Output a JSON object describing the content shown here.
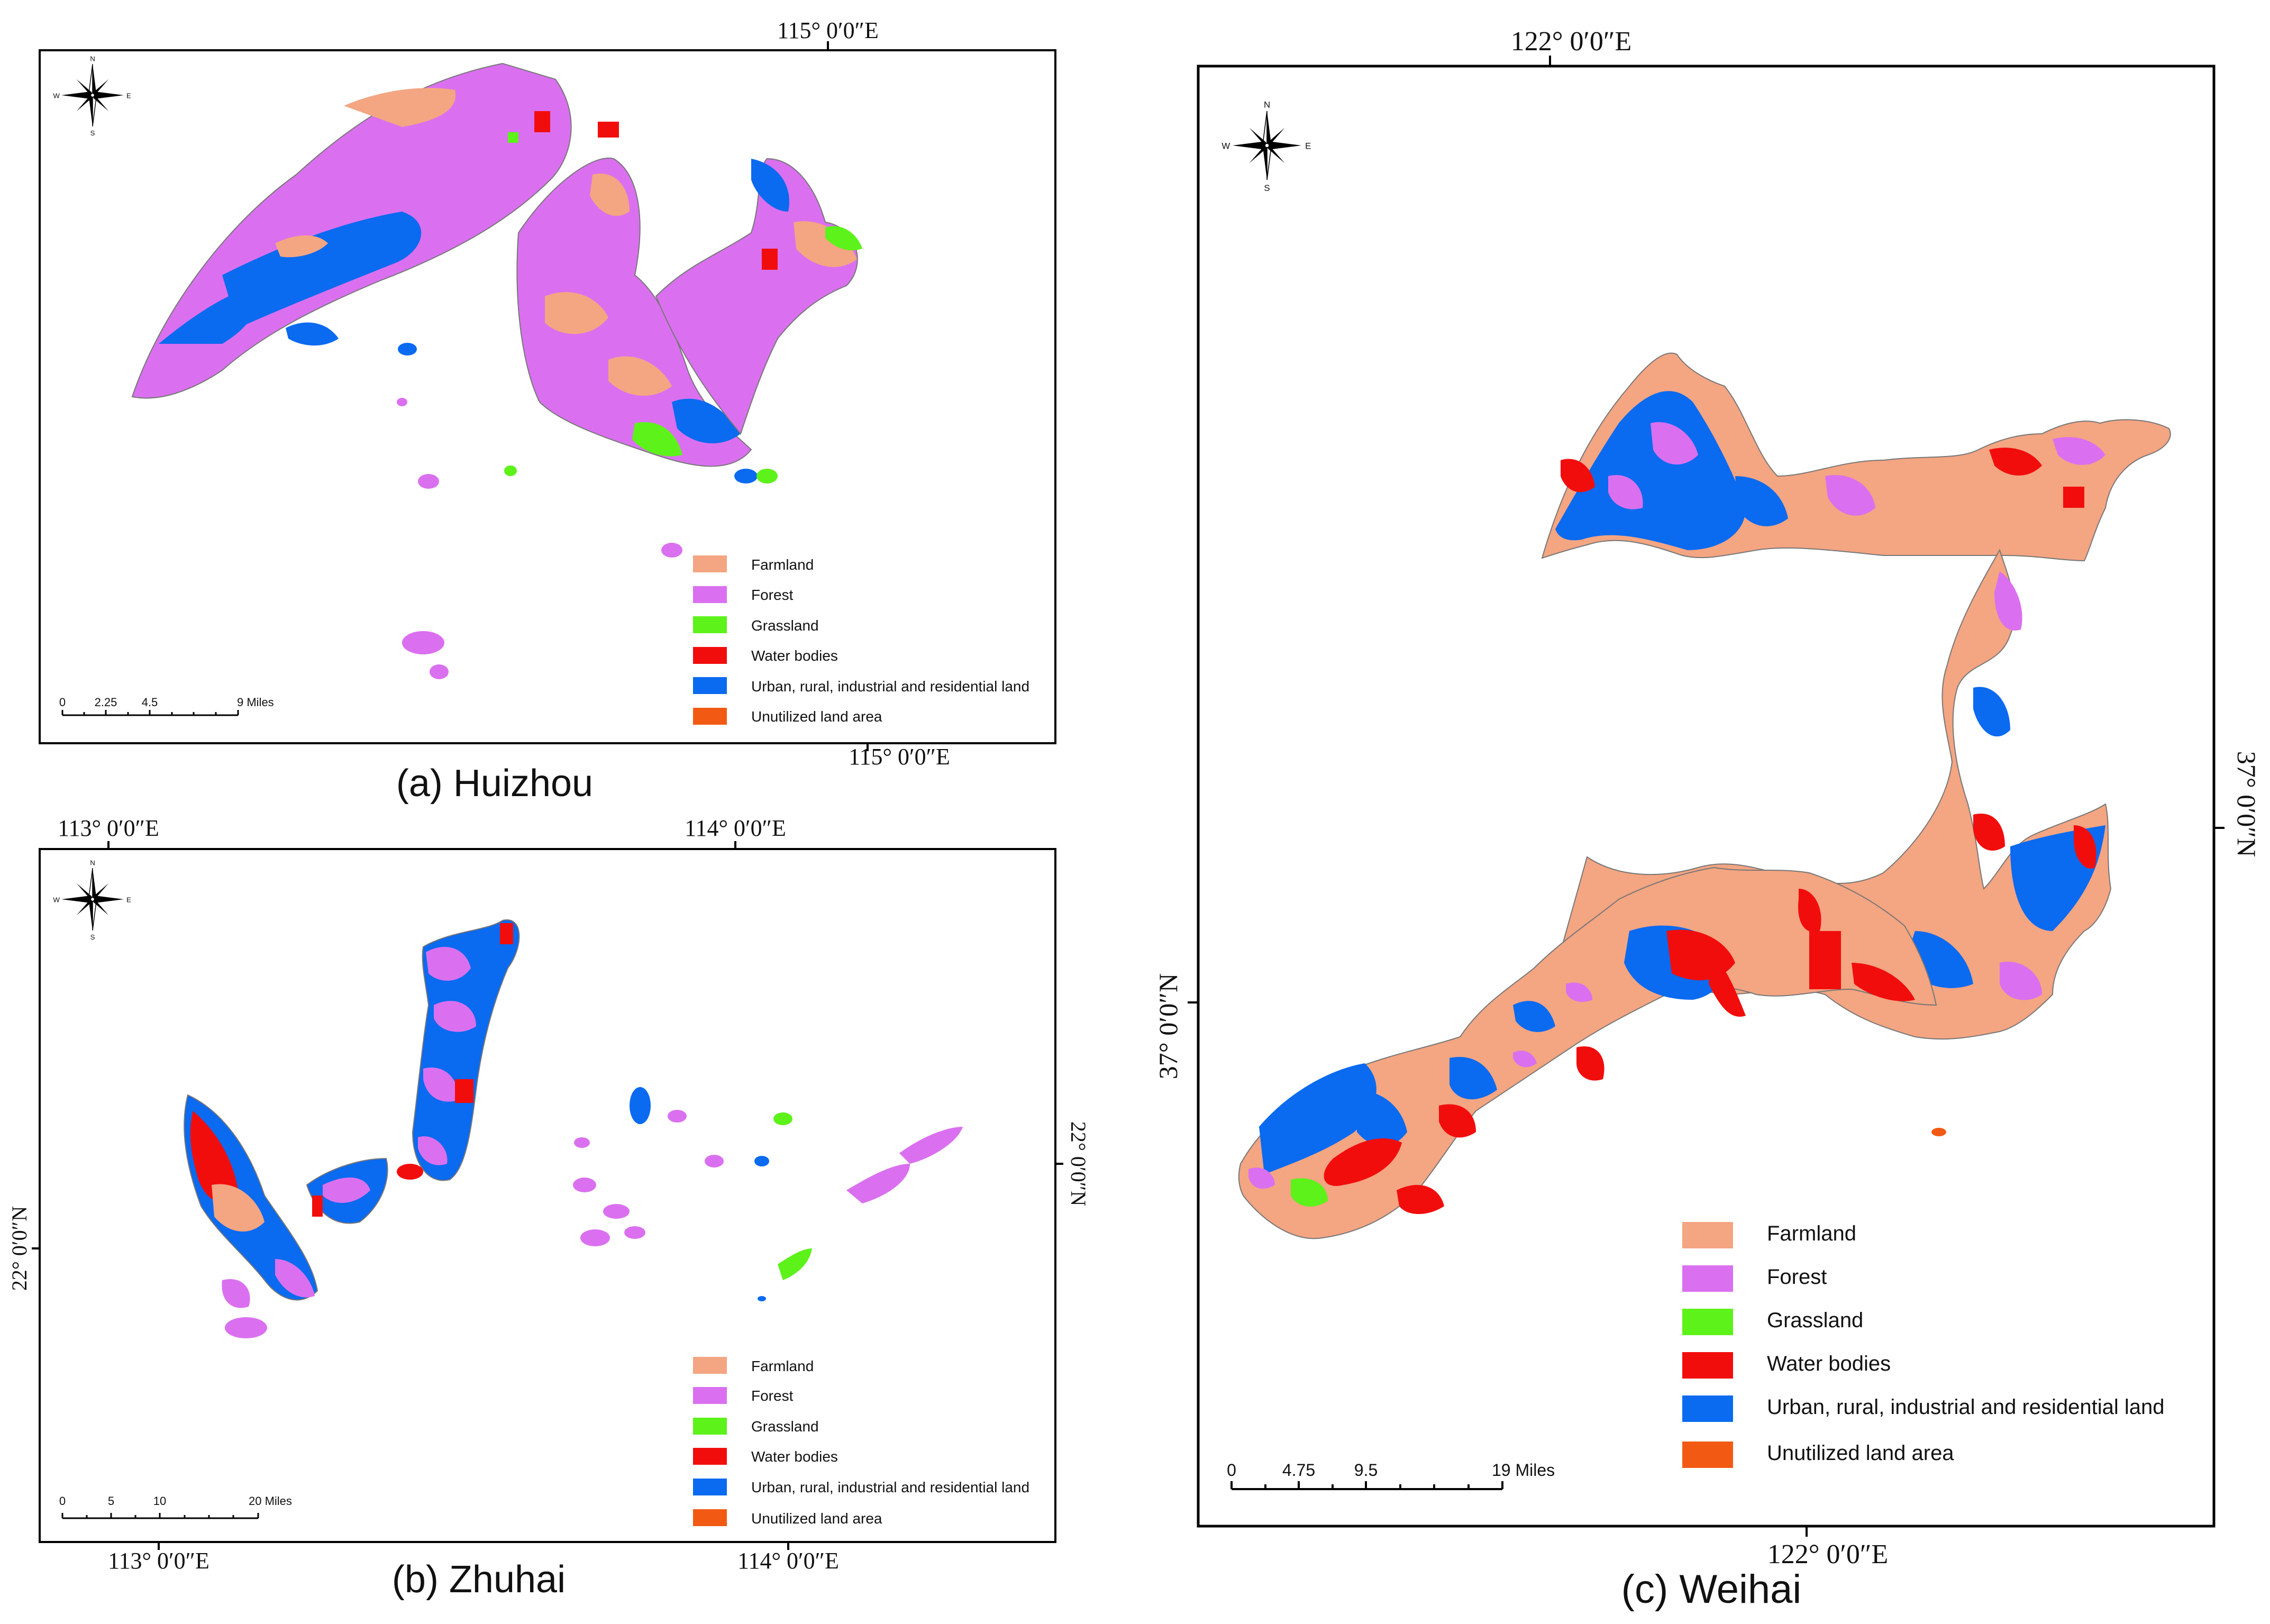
{
  "legend_items": [
    {
      "label": "Farmland",
      "color": "#F4A582"
    },
    {
      "label": "Forest",
      "color": "#DA70F0"
    },
    {
      "label": "Grassland",
      "color": "#5CF21A"
    },
    {
      "label": "Water bodies",
      "color": "#F20D0D"
    },
    {
      "label": "Urban, rural, industrial and residential land",
      "color": "#0A6AF0"
    },
    {
      "label": "Unutilized land area",
      "color": "#F25A14"
    }
  ],
  "compass": {
    "n": "N",
    "s": "S",
    "e": "E",
    "w": "W"
  },
  "panels": {
    "huizhou": {
      "caption": "(a) Huizhou",
      "coord_top": "115°  0′0″E",
      "coord_bottom": "115°  0′0″E",
      "scale_labels": [
        "0",
        "2.25",
        "4.5",
        "9 Miles"
      ]
    },
    "zhuhai": {
      "caption": "(b) Zhuhai",
      "coord_top_left": "113°  0′0″E",
      "coord_top_right": "114°  0′0″E",
      "coord_bottom_left": "113°  0′0″E",
      "coord_bottom_right": "114°  0′0″E",
      "coord_left": "22°  0′0″N",
      "coord_right": "22°  0′0″N",
      "scale_labels": [
        "0",
        "5",
        "10",
        "20 Miles"
      ]
    },
    "weihai": {
      "caption": "(c) Weihai",
      "coord_top": "122°  0′0″E",
      "coord_bottom": "122°  0′0″E",
      "coord_left": "37°  0′0″N",
      "coord_right": "37°  0′0″N",
      "scale_labels": [
        "0",
        "4.75",
        "9.5",
        "19 Miles"
      ]
    }
  }
}
